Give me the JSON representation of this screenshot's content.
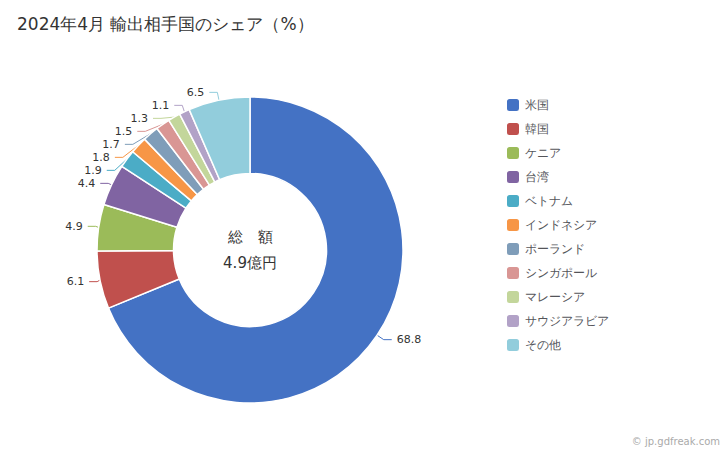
{
  "chart_data": {
    "type": "pie",
    "title": "2024年4月 輸出相手国のシェア（%）",
    "categories": [
      "米国",
      "韓国",
      "ケニア",
      "台湾",
      "ベトナム",
      "インドネシア",
      "ポーランド",
      "シンガポール",
      "マレーシア",
      "サウジアラビア",
      "その他"
    ],
    "values": [
      68.8,
      6.1,
      4.9,
      4.4,
      1.9,
      1.8,
      1.7,
      1.5,
      1.3,
      1.1,
      6.5
    ],
    "colors": [
      "#4472C4",
      "#C0504D",
      "#9BBB59",
      "#8064A2",
      "#4BACC6",
      "#F79646",
      "#7F9DB9",
      "#D99694",
      "#C3D69B",
      "#B2A2C7",
      "#92CDDC"
    ],
    "data_labels": true,
    "legend": "right",
    "annotations": [
      "総　額",
      "4.9億円",
      "© jp.gdfreak.com"
    ]
  }
}
